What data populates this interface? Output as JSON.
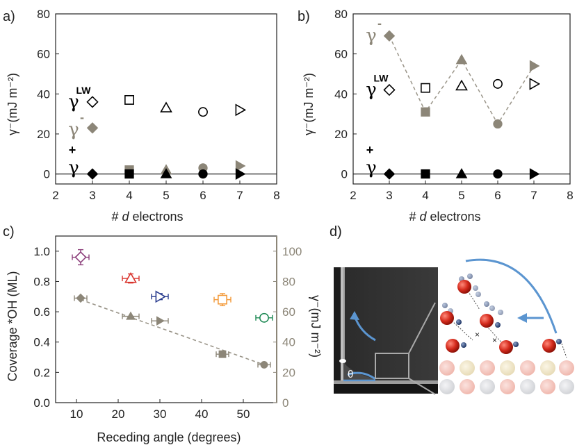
{
  "colors": {
    "black": "#000000",
    "gray": "#8c8678",
    "dash_gray": "#9a9589",
    "purple": "#8b3d7a",
    "red": "#d9322b",
    "blue": "#283b8e",
    "orange": "#f39a3a",
    "green": "#1f8a55",
    "arrow_blue": "#5b95d0"
  },
  "chart_data": [
    {
      "panel_label": "a)",
      "type": "scatter",
      "xlabel": "# d electrons",
      "xlabel_prefix": "# ",
      "xlabel_italic": "d",
      "xlabel_suffix": " electrons",
      "ylabel": "γ⁻(mJ m⁻²)",
      "xlim": [
        2,
        8
      ],
      "ylim": [
        -5,
        80
      ],
      "xticks": [
        2,
        3,
        4,
        5,
        6,
        7,
        8
      ],
      "yticks": [
        0,
        20,
        40,
        60,
        80
      ],
      "hline_y": 0,
      "series_labels": [
        {
          "text": "γ",
          "sup": "LW",
          "y": 36,
          "color": "black"
        },
        {
          "text": "γ",
          "sup": "-",
          "y": 22,
          "color": "gray"
        },
        {
          "text": "γ",
          "sup": "+",
          "y": 3,
          "color": "black"
        }
      ],
      "series": [
        {
          "name": "γLW",
          "color": "black",
          "filled": false,
          "x": [
            3,
            4,
            5,
            6,
            7
          ],
          "y": [
            36,
            37,
            33,
            31,
            32
          ],
          "markers": [
            "diamond",
            "square",
            "triangle",
            "circle",
            "triangle-right"
          ]
        },
        {
          "name": "γ-",
          "color": "gray",
          "filled": true,
          "x": [
            3,
            4,
            5,
            6,
            7
          ],
          "y": [
            23,
            2,
            2,
            3,
            4
          ],
          "markers": [
            "diamond",
            "square",
            "triangle",
            "circle",
            "triangle-right"
          ]
        },
        {
          "name": "γ+",
          "color": "black",
          "filled": true,
          "x": [
            3,
            4,
            5,
            6,
            7
          ],
          "y": [
            0,
            0,
            0,
            0,
            0
          ],
          "markers": [
            "diamond",
            "square",
            "triangle",
            "circle",
            "triangle-right"
          ]
        }
      ]
    },
    {
      "panel_label": "b)",
      "type": "scatter",
      "xlabel": "# d electrons",
      "xlabel_prefix": "# ",
      "xlabel_italic": "d",
      "xlabel_suffix": " electrons",
      "ylabel": "γ⁻(mJ m⁻²)",
      "xlim": [
        2,
        8
      ],
      "ylim": [
        -5,
        80
      ],
      "xticks": [
        2,
        3,
        4,
        5,
        6,
        7,
        8
      ],
      "yticks": [
        0,
        20,
        40,
        60,
        80
      ],
      "hline_y": 0,
      "series_labels": [
        {
          "text": "γ",
          "sup": "-",
          "y": 69,
          "color": "gray"
        },
        {
          "text": "γ",
          "sup": "LW",
          "y": 42,
          "color": "black"
        },
        {
          "text": "γ",
          "sup": "+",
          "y": 3,
          "color": "black"
        }
      ],
      "series": [
        {
          "name": "γLW",
          "color": "black",
          "filled": false,
          "x": [
            3,
            4,
            5,
            6,
            7
          ],
          "y": [
            42,
            43,
            44,
            45,
            45
          ],
          "markers": [
            "diamond",
            "square",
            "triangle",
            "circle",
            "triangle-right"
          ]
        },
        {
          "name": "γ-",
          "color": "gray",
          "filled": true,
          "dashed_line": true,
          "x": [
            3,
            4,
            5,
            6,
            7
          ],
          "y": [
            69,
            31,
            57,
            25,
            54
          ],
          "markers": [
            "diamond",
            "square",
            "triangle",
            "circle",
            "triangle-right"
          ]
        },
        {
          "name": "γ+",
          "color": "black",
          "filled": true,
          "x": [
            3,
            4,
            5,
            6,
            7
          ],
          "y": [
            0,
            0,
            0,
            0,
            0
          ],
          "markers": [
            "diamond",
            "square",
            "triangle",
            "circle",
            "triangle-right"
          ]
        }
      ]
    },
    {
      "panel_label": "c)",
      "type": "scatter",
      "xlabel": "Receding angle (degrees)",
      "ylabel": "Coverage *OH (ML)",
      "ylabel_right": "γ⁻(mJ m⁻²)",
      "xlim": [
        5,
        58
      ],
      "ylim": [
        0,
        1.1
      ],
      "ylim_right": [
        0,
        110
      ],
      "xticks": [
        10,
        20,
        30,
        40,
        50
      ],
      "yticks": [
        0.0,
        0.2,
        0.4,
        0.6,
        0.8,
        1.0
      ],
      "ytick_labels": [
        "0.0",
        "0.2",
        "0.4",
        "0.6",
        "0.8",
        "1.0"
      ],
      "yticks_right": [
        0,
        20,
        40,
        60,
        80,
        100
      ],
      "series": [
        {
          "name": "Coverage *OH",
          "axis": "left",
          "points": [
            {
              "x": 11,
              "y": 0.96,
              "xerr": 2,
              "yerr": 0.05,
              "marker": "diamond",
              "color": "purple"
            },
            {
              "x": 23,
              "y": 0.82,
              "xerr": 2,
              "yerr": 0.03,
              "marker": "triangle",
              "color": "red"
            },
            {
              "x": 30,
              "y": 0.7,
              "xerr": 2,
              "yerr": 0.02,
              "marker": "triangle-right",
              "color": "blue"
            },
            {
              "x": 45,
              "y": 0.68,
              "xerr": 2,
              "yerr": 0.04,
              "marker": "square",
              "color": "orange"
            },
            {
              "x": 55,
              "y": 0.56,
              "xerr": 2,
              "yerr": 0.02,
              "marker": "circle",
              "color": "green"
            }
          ]
        },
        {
          "name": "γ-",
          "axis": "right",
          "dashed_fit": [
            [
              11,
              68
            ],
            [
              55,
              25
            ]
          ],
          "points": [
            {
              "x": 11,
              "y": 69,
              "xerr": 1.5,
              "marker": "diamond",
              "color": "gray"
            },
            {
              "x": 23,
              "y": 57,
              "xerr": 2,
              "marker": "triangle",
              "color": "gray"
            },
            {
              "x": 30,
              "y": 54,
              "xerr": 2,
              "marker": "triangle-right",
              "color": "gray"
            },
            {
              "x": 45,
              "y": 32,
              "xerr": 1.5,
              "marker": "square",
              "color": "gray"
            },
            {
              "x": 55,
              "y": 25,
              "xerr": 1.5,
              "marker": "circle",
              "color": "gray"
            }
          ]
        }
      ]
    }
  ],
  "panel_d": {
    "label": "d)",
    "angle_symbol": "θ"
  }
}
